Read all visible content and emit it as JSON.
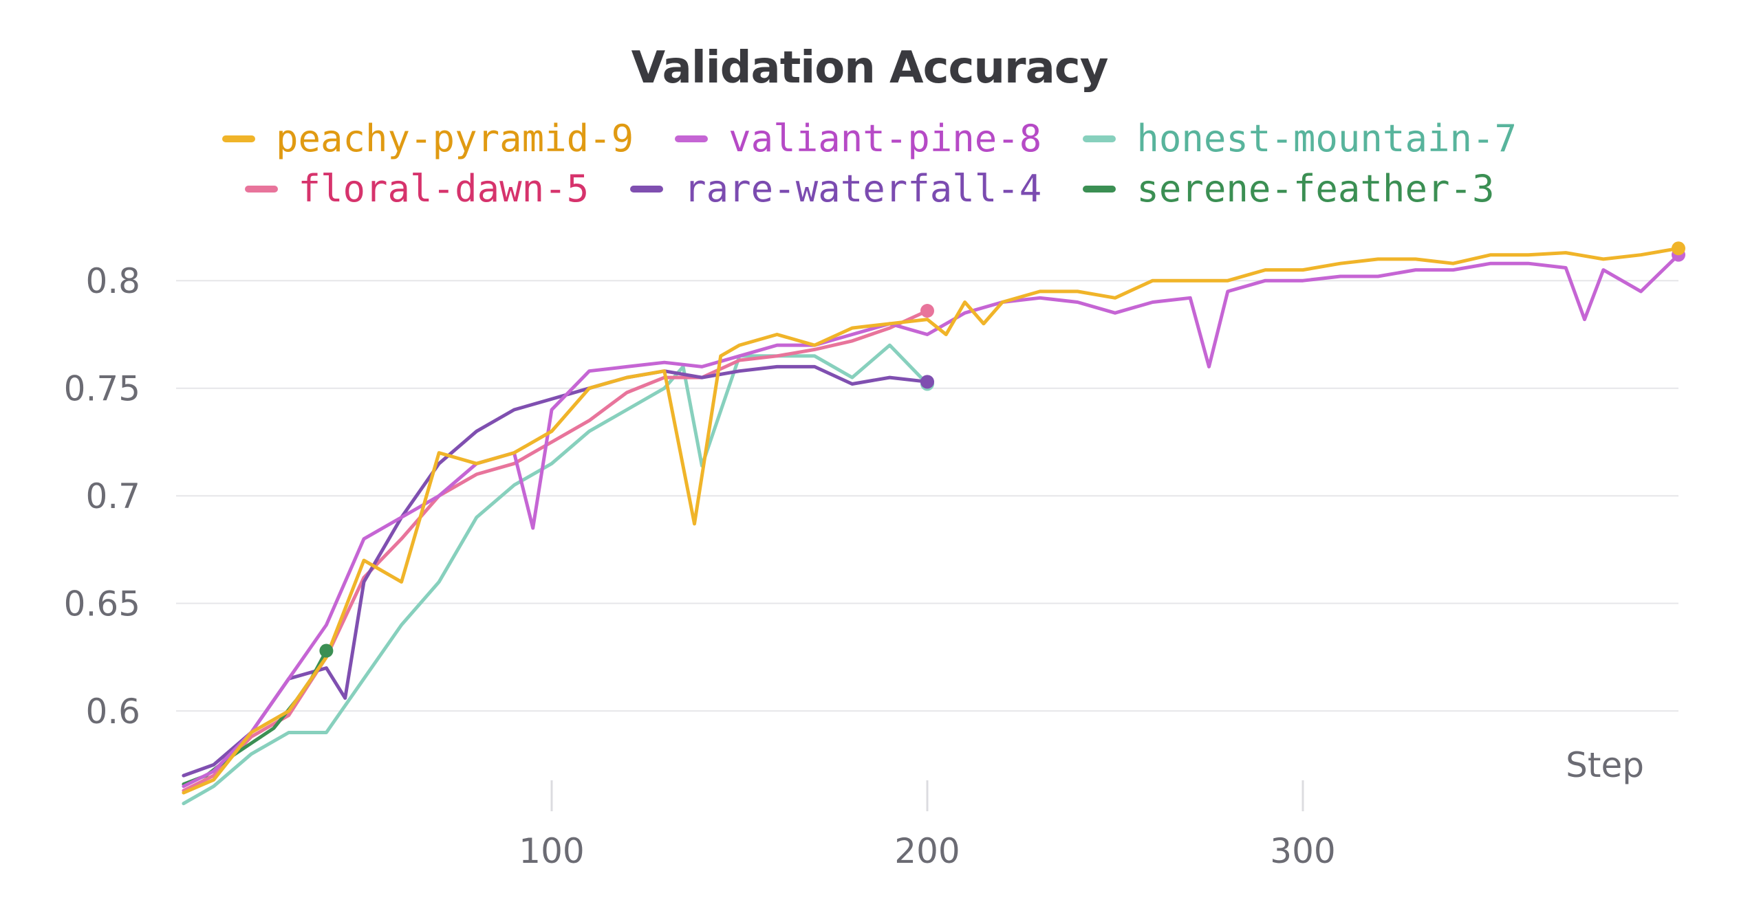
{
  "chart_data": {
    "type": "line",
    "title": "Validation Accuracy",
    "xlabel": "Step",
    "ylabel": "",
    "xlim": [
      0,
      400
    ],
    "ylim": [
      0.555,
      0.825
    ],
    "xticks": [
      100,
      200,
      300
    ],
    "yticks": [
      0.6,
      0.65,
      0.7,
      0.75,
      0.8
    ],
    "grid": true,
    "legend": "top",
    "series": [
      {
        "name": "peachy-pyramid-9",
        "color": "#f0b429",
        "x": [
          2,
          10,
          20,
          30,
          40,
          50,
          60,
          70,
          80,
          90,
          100,
          110,
          120,
          130,
          138,
          145,
          150,
          160,
          170,
          180,
          190,
          200,
          205,
          210,
          215,
          220,
          230,
          240,
          250,
          260,
          270,
          280,
          290,
          300,
          310,
          320,
          330,
          340,
          350,
          360,
          370,
          380,
          390,
          400
        ],
        "y": [
          0.562,
          0.568,
          0.59,
          0.6,
          0.625,
          0.67,
          0.66,
          0.72,
          0.715,
          0.72,
          0.73,
          0.75,
          0.755,
          0.758,
          0.687,
          0.765,
          0.77,
          0.775,
          0.77,
          0.778,
          0.78,
          0.782,
          0.775,
          0.79,
          0.78,
          0.79,
          0.795,
          0.795,
          0.792,
          0.8,
          0.8,
          0.8,
          0.805,
          0.805,
          0.808,
          0.81,
          0.81,
          0.808,
          0.812,
          0.812,
          0.813,
          0.81,
          0.812,
          0.815
        ]
      },
      {
        "name": "valiant-pine-8",
        "color": "#c565d4",
        "x": [
          2,
          10,
          20,
          30,
          40,
          50,
          60,
          70,
          80,
          90,
          95,
          100,
          110,
          120,
          130,
          140,
          150,
          160,
          170,
          180,
          190,
          200,
          210,
          220,
          230,
          240,
          250,
          260,
          270,
          275,
          280,
          290,
          300,
          310,
          320,
          330,
          340,
          350,
          360,
          370,
          375,
          380,
          390,
          400
        ],
        "y": [
          0.565,
          0.572,
          0.59,
          0.615,
          0.64,
          0.68,
          0.69,
          0.7,
          0.715,
          0.72,
          0.685,
          0.74,
          0.758,
          0.76,
          0.762,
          0.76,
          0.765,
          0.77,
          0.77,
          0.775,
          0.78,
          0.775,
          0.785,
          0.79,
          0.792,
          0.79,
          0.785,
          0.79,
          0.792,
          0.76,
          0.795,
          0.8,
          0.8,
          0.802,
          0.802,
          0.805,
          0.805,
          0.808,
          0.808,
          0.806,
          0.782,
          0.805,
          0.795,
          0.812
        ]
      },
      {
        "name": "honest-mountain-7",
        "color": "#87d0bd",
        "x": [
          2,
          10,
          20,
          30,
          40,
          50,
          60,
          70,
          80,
          90,
          100,
          110,
          120,
          130,
          135,
          140,
          150,
          160,
          170,
          180,
          190,
          200
        ],
        "y": [
          0.557,
          0.565,
          0.58,
          0.59,
          0.59,
          0.615,
          0.64,
          0.66,
          0.69,
          0.705,
          0.715,
          0.73,
          0.74,
          0.75,
          0.76,
          0.714,
          0.765,
          0.765,
          0.765,
          0.755,
          0.77,
          0.752
        ]
      },
      {
        "name": "floral-dawn-5",
        "color": "#e8749b",
        "x": [
          2,
          10,
          20,
          30,
          40,
          50,
          60,
          70,
          80,
          90,
          100,
          110,
          120,
          130,
          140,
          150,
          160,
          170,
          180,
          190,
          200
        ],
        "y": [
          0.563,
          0.57,
          0.588,
          0.598,
          0.625,
          0.662,
          0.68,
          0.7,
          0.71,
          0.715,
          0.725,
          0.735,
          0.748,
          0.755,
          0.755,
          0.763,
          0.765,
          0.768,
          0.772,
          0.778,
          0.786
        ]
      },
      {
        "name": "rare-waterfall-4",
        "color": "#7f4fb0",
        "x": [
          2,
          10,
          20,
          30,
          40,
          45,
          50,
          60,
          70,
          80,
          90,
          100,
          110,
          120,
          130,
          140,
          150,
          160,
          170,
          180,
          190,
          200
        ],
        "y": [
          0.57,
          0.575,
          0.59,
          0.615,
          0.62,
          0.606,
          0.66,
          0.69,
          0.715,
          0.73,
          0.74,
          0.745,
          0.75,
          0.755,
          0.758,
          0.755,
          0.758,
          0.76,
          0.76,
          0.752,
          0.755,
          0.753
        ]
      },
      {
        "name": "serene-feather-3",
        "color": "#3b8f53",
        "x": [
          2,
          8,
          14,
          20,
          26,
          32,
          36,
          40
        ],
        "y": [
          0.566,
          0.57,
          0.578,
          0.585,
          0.592,
          0.605,
          0.615,
          0.628
        ]
      }
    ]
  }
}
